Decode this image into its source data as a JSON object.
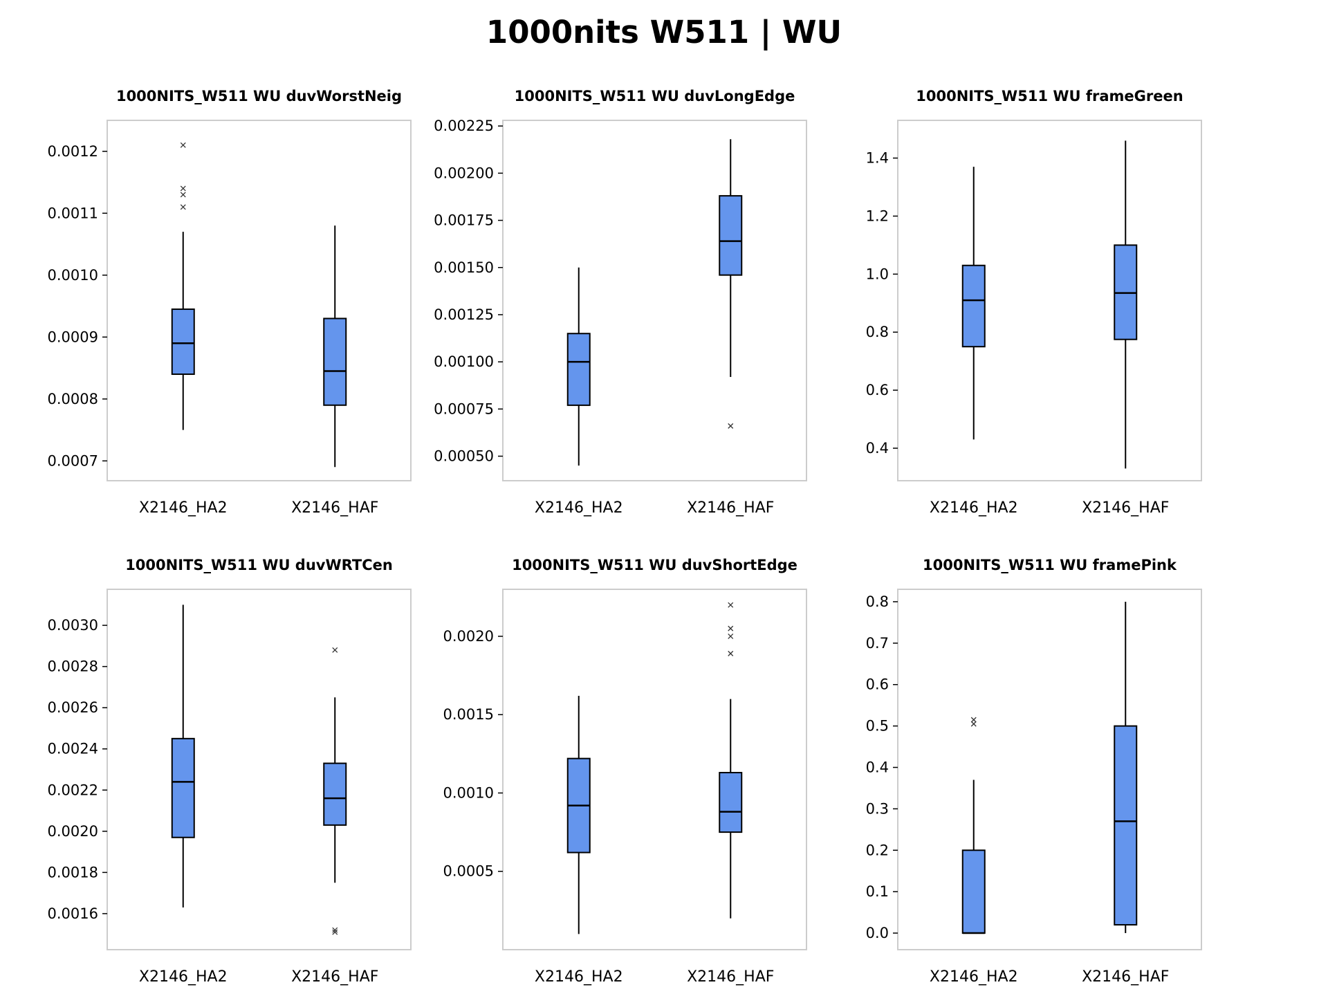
{
  "figure_title": "1000nits W511 | WU",
  "chart_data": [
    {
      "type": "box",
      "title": "1000NITS_W511 WU duvWorstNeig",
      "categories": [
        "X2146_HA2",
        "X2146_HAF"
      ],
      "ylim": [
        0.000668,
        0.00125
      ],
      "yticks": [
        0.0007,
        0.0008,
        0.0009,
        0.001,
        0.0011,
        0.0012
      ],
      "ytick_labels": [
        "0.0007",
        "0.0008",
        "0.0009",
        "0.0010",
        "0.0011",
        "0.0012"
      ],
      "boxes": [
        {
          "whislo": 0.00075,
          "q1": 0.00084,
          "med": 0.00089,
          "q3": 0.000945,
          "whishi": 0.00107,
          "fliers": [
            0.00111,
            0.00113,
            0.00114,
            0.00121
          ]
        },
        {
          "whislo": 0.00069,
          "q1": 0.00079,
          "med": 0.000845,
          "q3": 0.00093,
          "whishi": 0.00108,
          "fliers": []
        }
      ]
    },
    {
      "type": "box",
      "title": "1000NITS_W511 WU duvLongEdge",
      "categories": [
        "X2146_HA2",
        "X2146_HAF"
      ],
      "ylim": [
        0.00037,
        0.00228
      ],
      "yticks": [
        0.0005,
        0.00075,
        0.001,
        0.00125,
        0.0015,
        0.00175,
        0.002,
        0.00225
      ],
      "ytick_labels": [
        "0.00050",
        "0.00075",
        "0.00100",
        "0.00125",
        "0.00150",
        "0.00175",
        "0.00200",
        "0.00225"
      ],
      "boxes": [
        {
          "whislo": 0.00045,
          "q1": 0.00077,
          "med": 0.001,
          "q3": 0.00115,
          "whishi": 0.0015,
          "fliers": []
        },
        {
          "whislo": 0.00092,
          "q1": 0.00146,
          "med": 0.00164,
          "q3": 0.00188,
          "whishi": 0.00218,
          "fliers": [
            0.00066
          ]
        }
      ]
    },
    {
      "type": "box",
      "title": "1000NITS_W511 WU frameGreen",
      "categories": [
        "X2146_HA2",
        "X2146_HAF"
      ],
      "ylim": [
        0.288,
        1.53
      ],
      "yticks": [
        0.4,
        0.6,
        0.8,
        1.0,
        1.2,
        1.4
      ],
      "ytick_labels": [
        "0.4",
        "0.6",
        "0.8",
        "1.0",
        "1.2",
        "1.4"
      ],
      "boxes": [
        {
          "whislo": 0.43,
          "q1": 0.75,
          "med": 0.91,
          "q3": 1.03,
          "whishi": 1.37,
          "fliers": []
        },
        {
          "whislo": 0.33,
          "q1": 0.775,
          "med": 0.935,
          "q3": 1.1,
          "whishi": 1.46,
          "fliers": []
        }
      ]
    },
    {
      "type": "box",
      "title": "1000NITS_W511 WU duvWRTCen",
      "categories": [
        "X2146_HA2",
        "X2146_HAF"
      ],
      "ylim": [
        0.001425,
        0.003175
      ],
      "yticks": [
        0.0016,
        0.0018,
        0.002,
        0.0022,
        0.0024,
        0.0026,
        0.0028,
        0.003
      ],
      "ytick_labels": [
        "0.0016",
        "0.0018",
        "0.0020",
        "0.0022",
        "0.0024",
        "0.0026",
        "0.0028",
        "0.0030"
      ],
      "boxes": [
        {
          "whislo": 0.00163,
          "q1": 0.00197,
          "med": 0.00224,
          "q3": 0.00245,
          "whishi": 0.0031,
          "fliers": []
        },
        {
          "whislo": 0.00175,
          "q1": 0.00203,
          "med": 0.00216,
          "q3": 0.00233,
          "whishi": 0.00265,
          "fliers": [
            0.00151,
            0.00152,
            0.00288
          ]
        }
      ]
    },
    {
      "type": "box",
      "title": "1000NITS_W511 WU duvShortEdge",
      "categories": [
        "X2146_HA2",
        "X2146_HAF"
      ],
      "ylim": [
        0.0,
        0.0023
      ],
      "yticks": [
        0.0005,
        0.001,
        0.0015,
        0.002
      ],
      "ytick_labels": [
        "0.0005",
        "0.0010",
        "0.0015",
        "0.0020"
      ],
      "boxes": [
        {
          "whislo": 0.0001,
          "q1": 0.00062,
          "med": 0.00092,
          "q3": 0.00122,
          "whishi": 0.00162,
          "fliers": []
        },
        {
          "whislo": 0.0002,
          "q1": 0.00075,
          "med": 0.00088,
          "q3": 0.00113,
          "whishi": 0.0016,
          "fliers": [
            0.00189,
            0.002,
            0.00205,
            0.0022
          ]
        }
      ]
    },
    {
      "type": "box",
      "title": "1000NITS_W511 WU framePink",
      "categories": [
        "X2146_HA2",
        "X2146_HAF"
      ],
      "ylim": [
        -0.04,
        0.83
      ],
      "yticks": [
        0.0,
        0.1,
        0.2,
        0.3,
        0.4,
        0.5,
        0.6,
        0.7,
        0.8
      ],
      "ytick_labels": [
        "0.0",
        "0.1",
        "0.2",
        "0.3",
        "0.4",
        "0.5",
        "0.6",
        "0.7",
        "0.8"
      ],
      "boxes": [
        {
          "whislo": 0.0,
          "q1": 0.0,
          "med": 0.0,
          "q3": 0.2,
          "whishi": 0.37,
          "fliers": [
            0.505,
            0.515
          ]
        },
        {
          "whislo": 0.0,
          "q1": 0.02,
          "med": 0.27,
          "q3": 0.5,
          "whishi": 0.8,
          "fliers": []
        }
      ]
    }
  ]
}
